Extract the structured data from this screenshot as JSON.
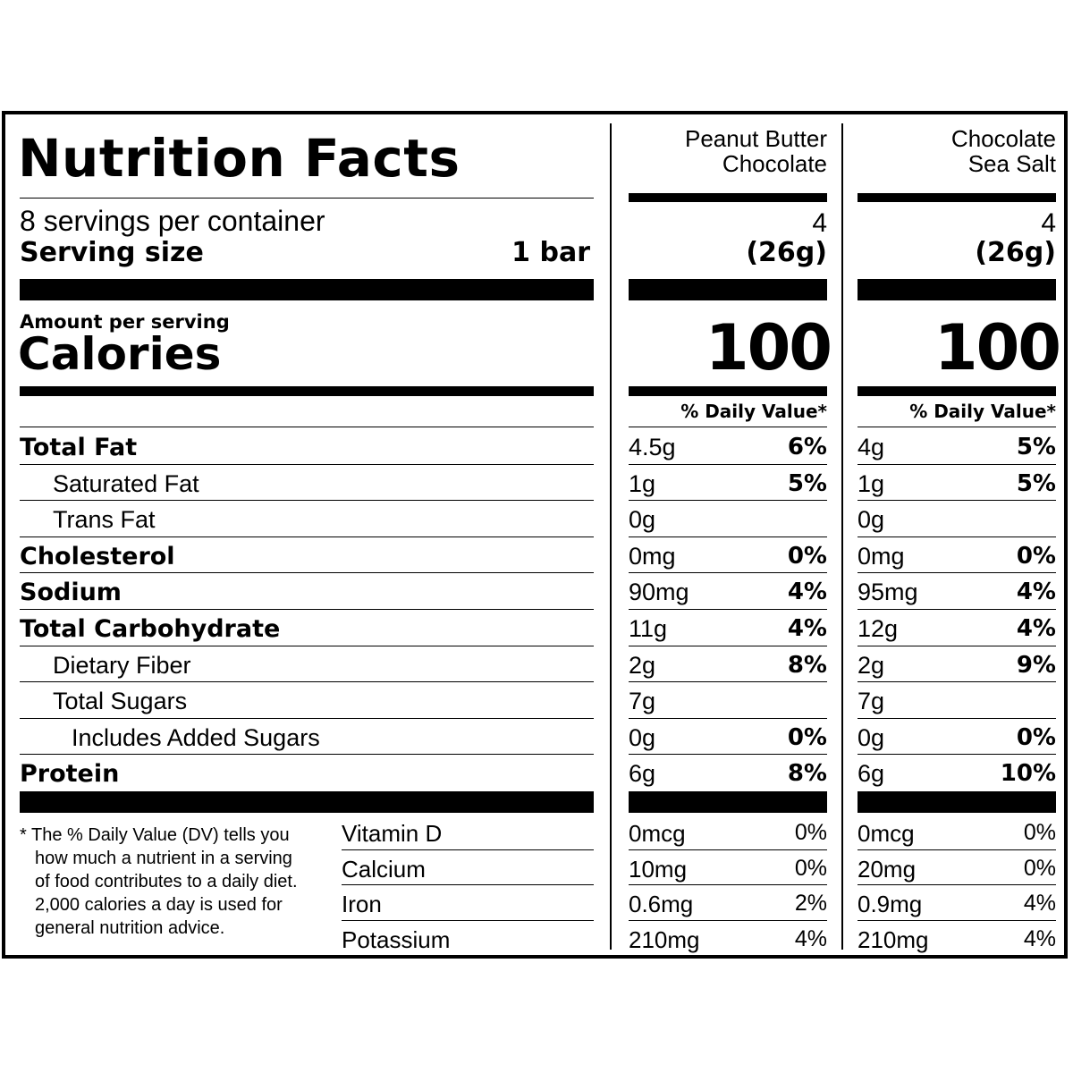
{
  "title": "Nutrition Facts",
  "servings_per_container": "8 servings per container",
  "serving_size_label": "Serving size",
  "serving_size_value": "1 bar",
  "amount_per_serving": "Amount per serving",
  "calories_label": "Calories",
  "daily_value_header": "% Daily Value*",
  "products": [
    {
      "name_line1": "Peanut Butter",
      "name_line2": "Chocolate",
      "serving_count": "4",
      "serving_weight": "(26g)",
      "calories": "100",
      "nutrients": [
        {
          "amount": "4.5g",
          "dv": "6%"
        },
        {
          "amount": "1g",
          "dv": "5%"
        },
        {
          "amount": "0g",
          "dv": ""
        },
        {
          "amount": "0mg",
          "dv": "0%"
        },
        {
          "amount": "90mg",
          "dv": "4%"
        },
        {
          "amount": "11g",
          "dv": "4%"
        },
        {
          "amount": "2g",
          "dv": "8%"
        },
        {
          "amount": "7g",
          "dv": ""
        },
        {
          "amount": "0g",
          "dv": "0%"
        },
        {
          "amount": "6g",
          "dv": "8%"
        }
      ],
      "vitamins": [
        {
          "amount": "0mcg",
          "dv": "0%"
        },
        {
          "amount": "10mg",
          "dv": "0%"
        },
        {
          "amount": "0.6mg",
          "dv": "2%"
        },
        {
          "amount": "210mg",
          "dv": "4%"
        }
      ]
    },
    {
      "name_line1": "Chocolate",
      "name_line2": "Sea Salt",
      "serving_count": "4",
      "serving_weight": "(26g)",
      "calories": "100",
      "nutrients": [
        {
          "amount": "4g",
          "dv": "5%"
        },
        {
          "amount": "1g",
          "dv": "5%"
        },
        {
          "amount": "0g",
          "dv": ""
        },
        {
          "amount": "0mg",
          "dv": "0%"
        },
        {
          "amount": "95mg",
          "dv": "4%"
        },
        {
          "amount": "12g",
          "dv": "4%"
        },
        {
          "amount": "2g",
          "dv": "9%"
        },
        {
          "amount": "7g",
          "dv": ""
        },
        {
          "amount": "0g",
          "dv": "0%"
        },
        {
          "amount": "6g",
          "dv": "10%"
        }
      ],
      "vitamins": [
        {
          "amount": "0mcg",
          "dv": "0%"
        },
        {
          "amount": "20mg",
          "dv": "0%"
        },
        {
          "amount": "0.9mg",
          "dv": "4%"
        },
        {
          "amount": "210mg",
          "dv": "4%"
        }
      ]
    }
  ],
  "nutrients": [
    {
      "name": "Total Fat",
      "bold": true,
      "indent": 0
    },
    {
      "name": "Saturated Fat",
      "bold": false,
      "indent": 1
    },
    {
      "name": "Trans Fat",
      "bold": false,
      "indent": 1
    },
    {
      "name": "Cholesterol",
      "bold": true,
      "indent": 0
    },
    {
      "name": "Sodium",
      "bold": true,
      "indent": 0
    },
    {
      "name": "Total Carbohydrate",
      "bold": true,
      "indent": 0
    },
    {
      "name": "Dietary Fiber",
      "bold": false,
      "indent": 1
    },
    {
      "name": "Total Sugars",
      "bold": false,
      "indent": 1
    },
    {
      "name": "Includes Added Sugars",
      "bold": false,
      "indent": 2
    },
    {
      "name": "Protein",
      "bold": true,
      "indent": 0
    }
  ],
  "vitamins": [
    "Vitamin D",
    "Calcium",
    "Iron",
    "Potassium"
  ],
  "footnote": [
    "* The % Daily Value (DV) tells you",
    "how much a nutrient in a serving",
    "of food contributes to a daily diet.",
    "2,000 calories a day is used for",
    "general nutrition advice."
  ]
}
